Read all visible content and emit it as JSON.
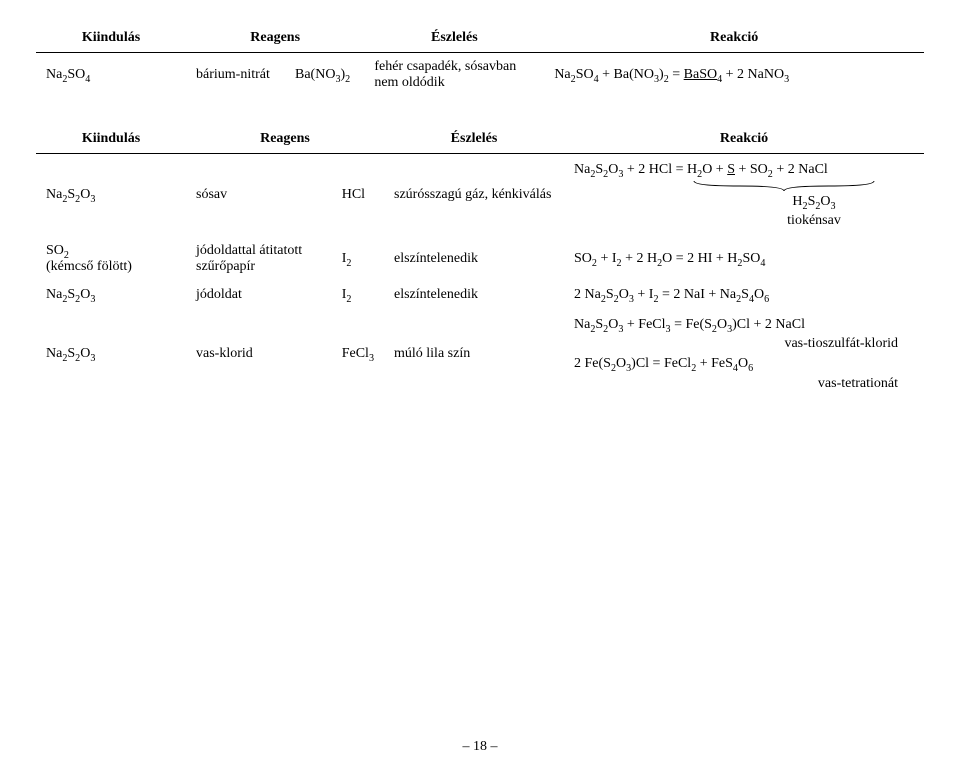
{
  "table1": {
    "headers": {
      "k": "Kiindulás",
      "r": "Reagens",
      "e": "Észlelés",
      "x": "Reakció"
    },
    "row": {
      "kiindulas_html": "Na<span class='sub'>2</span>SO<span class='sub'>4</span>",
      "reagens_name": "bárium-nitrát",
      "reagens_formula_html": "Ba(NO<span class='sub'>3</span>)<span class='sub'>2</span>",
      "eszleles": "fehér csapadék, sósavban nem oldódik",
      "reakcio_html": "Na<span class='sub'>2</span>SO<span class='sub'>4</span> + Ba(NO<span class='sub'>3</span>)<span class='sub'>2</span> = <span class='underline'>BaSO<span class='sub'>4</span></span> + 2 NaNO<span class='sub'>3</span>"
    }
  },
  "table2": {
    "headers": {
      "k": "Kiindulás",
      "r": "Reagens",
      "e": "Észlelés",
      "x": "Reakció"
    },
    "rows": [
      {
        "kiindulas_html": "Na<span class='sub'>2</span>S<span class='sub'>2</span>O<span class='sub'>3</span>",
        "reagens_name": "sósav",
        "reagens_formula_html": "HCl",
        "eszleles": "szúrósszagú gáz, kénkiválás",
        "reakcio_html": "Na<span class='sub'>2</span>S<span class='sub'>2</span>O<span class='sub'>3</span> + 2 HCl = H<span class='sub'>2</span>O + <span class='underline'>S</span> + SO<span class='sub'>2</span> + 2 NaCl",
        "brace_label_html": "H<span class='sub'>2</span>S<span class='sub'>2</span>O<span class='sub'>3</span>",
        "brace_caption": "tiokénsav"
      },
      {
        "kiindulas_html": "SO<span class='sub'>2</span><br>(kémcső fölött)",
        "reagens_name": "jódoldattal átitatott szűrőpapír",
        "reagens_formula_html": "I<span class='sub'>2</span>",
        "eszleles": "elszíntelenedik",
        "reakcio_html": "SO<span class='sub'>2</span> + I<span class='sub'>2</span> + 2 H<span class='sub'>2</span>O = 2 HI + H<span class='sub'>2</span>SO<span class='sub'>4</span>"
      },
      {
        "kiindulas_html": "Na<span class='sub'>2</span>S<span class='sub'>2</span>O<span class='sub'>3</span>",
        "reagens_name": "jódoldat",
        "reagens_formula_html": "I<span class='sub'>2</span>",
        "eszleles": "elszíntelenedik",
        "reakcio_html": "2 Na<span class='sub'>2</span>S<span class='sub'>2</span>O<span class='sub'>3</span> + I<span class='sub'>2</span> = 2 NaI + Na<span class='sub'>2</span>S<span class='sub'>4</span>O<span class='sub'>6</span>"
      },
      {
        "kiindulas_html": "Na<span class='sub'>2</span>S<span class='sub'>2</span>O<span class='sub'>3</span>",
        "reagens_name": "vas-klorid",
        "reagens_formula_html": "FeCl<span class='sub'>3</span>",
        "eszleles": "múló lila szín",
        "reakcio_line1_html": "Na<span class='sub'>2</span>S<span class='sub'>2</span>O<span class='sub'>3</span> + FeCl<span class='sub'>3</span> = Fe(S<span class='sub'>2</span>O<span class='sub'>3</span>)Cl + 2 NaCl",
        "reakcio_label1": "vas-tioszulfát-klorid",
        "reakcio_line2_html": "2 Fe(S<span class='sub'>2</span>O<span class='sub'>3</span>)Cl = FeCl<span class='sub'>2</span> + FeS<span class='sub'>4</span>O<span class='sub'>6</span>",
        "reakcio_label2": "vas-tetrationát"
      }
    ]
  },
  "page_number": "– 18 –"
}
